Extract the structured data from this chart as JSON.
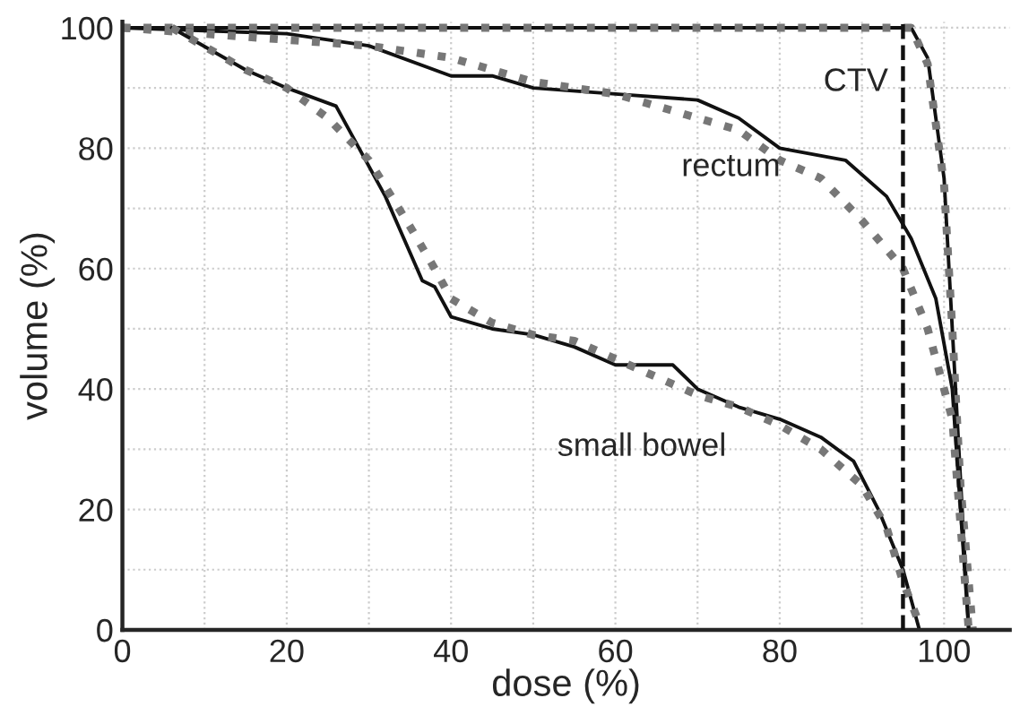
{
  "chart_data": {
    "type": "line",
    "xlabel": "dose (%)",
    "ylabel": "volume (%)",
    "xlim": [
      0,
      108
    ],
    "ylim": [
      0,
      101
    ],
    "xticks": [
      0,
      {
        "value": 10,
        "label": null
      },
      20,
      {
        "value": 30,
        "label": null
      },
      40,
      {
        "value": 50,
        "label": null
      },
      60,
      {
        "value": 70,
        "label": null
      },
      80,
      {
        "value": 90,
        "label": null
      },
      100
    ],
    "yticks": [
      0,
      {
        "value": 10,
        "label": null
      },
      20,
      {
        "value": 30,
        "label": null
      },
      40,
      {
        "value": 50,
        "label": null
      },
      60,
      {
        "value": 70,
        "label": null
      },
      80,
      {
        "value": 90,
        "label": null
      },
      100
    ],
    "grid": true,
    "legend": false,
    "series": [
      {
        "color": "#111111",
        "line_style": "solid",
        "x": [
          0,
          96,
          98,
          100,
          101,
          102,
          103
        ],
        "values": [
          100,
          100,
          95,
          75,
          50,
          25,
          0
        ]
      },
      {
        "color": "#777777",
        "line_style": "dotted",
        "x": [
          0,
          96,
          98,
          100,
          101,
          102,
          103.5
        ],
        "values": [
          100,
          100,
          94,
          74,
          50,
          24,
          0
        ]
      },
      {
        "color": "#111111",
        "line_style": "solid",
        "x": [
          0,
          20,
          30,
          40,
          45,
          50,
          60,
          70,
          75,
          80,
          88,
          93,
          96,
          99,
          101,
          103
        ],
        "values": [
          100,
          99,
          97,
          92,
          92,
          90,
          89,
          88,
          85,
          80,
          78,
          72,
          65,
          55,
          40,
          0
        ]
      },
      {
        "color": "#777777",
        "line_style": "dotted",
        "x": [
          0,
          20,
          30,
          40,
          50,
          60,
          70,
          75,
          80,
          85,
          90,
          95,
          98,
          101,
          103
        ],
        "values": [
          100,
          98,
          97,
          95,
          91,
          89,
          85,
          83,
          78,
          75,
          68,
          60,
          50,
          35,
          0
        ]
      },
      {
        "color": "#111111",
        "line_style": "solid",
        "x": [
          6,
          15,
          20,
          26,
          32,
          36.5,
          38,
          40,
          45,
          50,
          55,
          60,
          67,
          70,
          75,
          80,
          85,
          89,
          92,
          95,
          97
        ],
        "values": [
          100,
          93,
          90,
          87,
          72,
          58,
          57,
          52,
          50,
          49,
          47,
          44,
          44,
          40,
          37,
          35,
          32,
          28,
          20,
          10,
          0
        ]
      },
      {
        "color": "#777777",
        "line_style": "dotted",
        "x": [
          6,
          15,
          20,
          25,
          30,
          35,
          38,
          40,
          45,
          50,
          55,
          60,
          65,
          70,
          75,
          80,
          85,
          90,
          93,
          95,
          97
        ],
        "values": [
          100,
          93,
          90,
          85,
          78,
          67,
          60,
          55,
          51,
          49,
          48,
          45,
          42,
          39,
          37,
          34,
          30,
          24,
          17,
          8,
          1
        ]
      }
    ],
    "ref_lines": [
      {
        "axis": "x",
        "value": 95,
        "color": "#111111",
        "line_style": "dashed"
      }
    ],
    "annotations": [
      "CTV",
      "rectum",
      "small bowel"
    ]
  }
}
